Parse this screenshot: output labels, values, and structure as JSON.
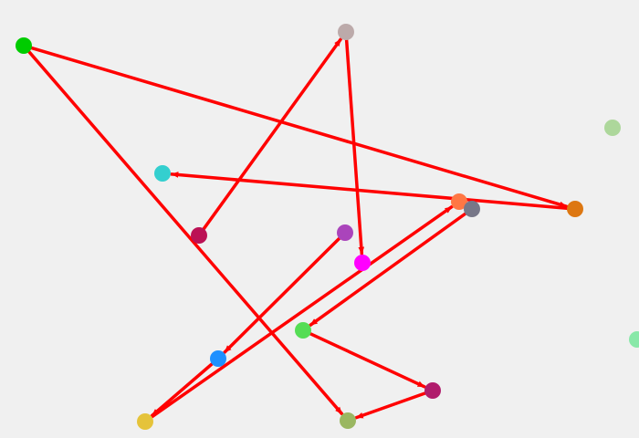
{
  "diagram": {
    "background": "#f0f0f0",
    "edge_color": "#ff0000",
    "nodes": [
      {
        "id": "n1",
        "color": "#00cc00"
      },
      {
        "id": "n2",
        "color": "#bcaaaa"
      },
      {
        "id": "n3",
        "color": "#add79b"
      },
      {
        "id": "n4",
        "color": "#34cfcf"
      },
      {
        "id": "n5",
        "color": "#dd7711"
      },
      {
        "id": "n6",
        "color": "#bb1155"
      },
      {
        "id": "n7",
        "color": "#aa44bb"
      },
      {
        "id": "n8",
        "color": "#ff00ff"
      },
      {
        "id": "n9",
        "color": "#ff7744"
      },
      {
        "id": "n10",
        "color": "#777788"
      },
      {
        "id": "n11",
        "color": "#55dd55"
      },
      {
        "id": "n12",
        "color": "#88e8a8"
      },
      {
        "id": "n13",
        "color": "#1e90ff"
      },
      {
        "id": "n14",
        "color": "#b01c6c"
      },
      {
        "id": "n15",
        "color": "#e5c33a"
      },
      {
        "id": "n16",
        "color": "#9ab761"
      }
    ],
    "edges": [
      {
        "from": "n6",
        "to": "n2"
      },
      {
        "from": "n2",
        "to": "n8"
      },
      {
        "from": "n1",
        "to": "n5"
      },
      {
        "from": "n1",
        "to": "n16"
      },
      {
        "from": "n5",
        "to": "n4"
      },
      {
        "from": "n15",
        "to": "n9"
      },
      {
        "from": "n10",
        "to": "n11"
      },
      {
        "from": "n7",
        "to": "n13"
      },
      {
        "from": "n13",
        "to": "n15"
      },
      {
        "from": "n11",
        "to": "n14"
      },
      {
        "from": "n14",
        "to": "n16"
      }
    ]
  }
}
